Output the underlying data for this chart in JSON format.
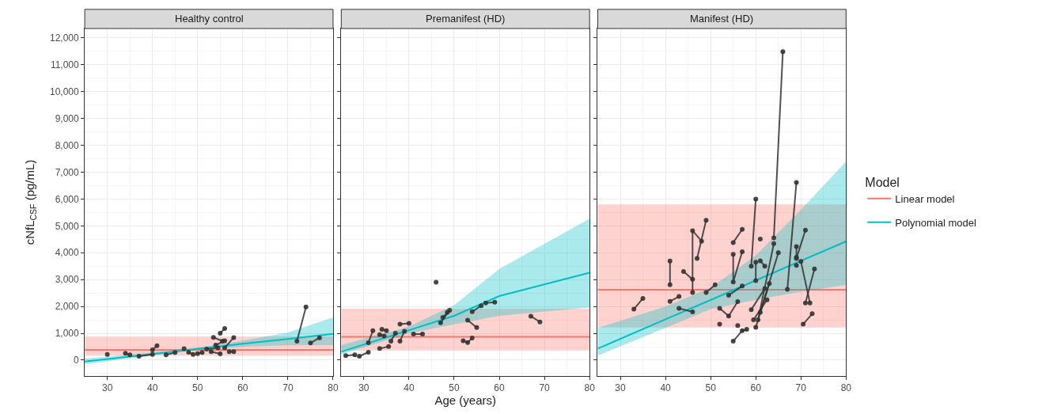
{
  "chart_data": [
    {
      "type": "line",
      "title": "Healthy control",
      "ylabel": "cNfL$_{CSF}$ (pg/mL)",
      "xlim": [
        25,
        80
      ],
      "xticks": [
        30,
        40,
        50,
        60,
        70,
        80
      ],
      "ylim": [
        -590,
        12350
      ],
      "yticks": [
        0,
        {
          "value": 1000,
          "label": "1,000"
        },
        {
          "value": 2000,
          "label": "2,000"
        },
        {
          "value": 3000,
          "label": "3,000"
        },
        {
          "value": 4000,
          "label": "4,000"
        },
        {
          "value": 5000,
          "label": "5,000"
        },
        {
          "value": 6000,
          "label": "6,000"
        },
        {
          "value": 7000,
          "label": "7,000"
        },
        {
          "value": 8000,
          "label": "8,000"
        },
        {
          "value": 9000,
          "label": "9,000"
        },
        {
          "value": 10000,
          "label": "10,000"
        },
        {
          "value": 11000,
          "label": "11,000"
        },
        {
          "value": 12000,
          "label": "12,000"
        }
      ],
      "grid": true,
      "series": [
        {
          "color": "#f8766d",
          "x": [
            25,
            80
          ],
          "values": [
            380,
            380
          ],
          "lower": [
            167,
            167
          ],
          "upper": [
            882,
            882
          ]
        },
        {
          "color": "#00bfc4",
          "x": [
            25,
            40,
            50,
            60,
            70,
            80
          ],
          "values": [
            -50,
            230,
            420,
            610,
            790,
            980
          ],
          "lower": [
            -150,
            180,
            380,
            500,
            550,
            560
          ],
          "upper": [
            60,
            290,
            470,
            720,
            1030,
            1590
          ]
        },
        {
          "color": "#333333",
          "marker": "circle",
          "x": [
            30,
            null,
            34,
            35,
            null,
            37,
            40,
            null,
            40,
            41,
            null,
            43,
            45,
            null,
            47,
            null,
            48,
            49,
            null,
            50,
            51,
            null,
            52,
            54.5,
            null,
            53.5,
            55.5,
            null,
            55,
            56,
            null,
            54,
            56,
            null,
            56,
            58,
            null,
            53,
            55,
            null,
            57,
            58,
            null,
            72,
            74,
            null,
            75,
            77
          ],
          "values": [
            215,
            null,
            255,
            196,
            null,
            147,
            216,
            null,
            380,
            540,
            null,
            196,
            284,
            null,
            430,
            null,
            294,
            216,
            null,
            245,
            284,
            null,
            410,
            460,
            null,
            850,
            706,
            null,
            1000,
            1176,
            null,
            560,
            725,
            null,
            460,
            843,
            null,
            314,
            235,
            null,
            314,
            314,
            null,
            706,
            1980,
            null,
            637,
            833
          ]
        }
      ]
    },
    {
      "type": "line",
      "title": "Premanifest (HD)",
      "xlabel": "Age (years)",
      "tick_labels": "x",
      "xlim": [
        25,
        80
      ],
      "xticks": [
        30,
        40,
        50,
        60,
        70,
        80
      ],
      "ylim": [
        -590,
        12350
      ],
      "yticks": [
        {
          "value": 0,
          "label": null
        },
        {
          "value": 1000,
          "label": null
        },
        {
          "value": 2000,
          "label": null
        },
        {
          "value": 3000,
          "label": null
        },
        {
          "value": 4000,
          "label": null
        },
        {
          "value": 5000,
          "label": null
        },
        {
          "value": 6000,
          "label": null
        },
        {
          "value": 7000,
          "label": null
        },
        {
          "value": 8000,
          "label": null
        },
        {
          "value": 9000,
          "label": null
        },
        {
          "value": 10000,
          "label": null
        },
        {
          "value": 11000,
          "label": null
        },
        {
          "value": 12000,
          "label": null
        }
      ],
      "grid": true,
      "series": [
        {
          "color": "#f8766d",
          "x": [
            25,
            80
          ],
          "values": [
            870,
            870
          ],
          "lower": [
            363,
            363
          ],
          "upper": [
            1912,
            1912
          ]
        },
        {
          "color": "#00bfc4",
          "x": [
            25,
            40,
            50,
            60,
            70,
            80
          ],
          "values": [
            314,
            1116,
            1650,
            2385,
            2820,
            3255
          ],
          "lower": [
            216,
            1000,
            1330,
            1650,
            1810,
            1961
          ],
          "upper": [
            560,
            1250,
            2050,
            3400,
            4330,
            5265
          ]
        },
        {
          "color": "#333333",
          "marker": "circle",
          "x": [
            26,
            28,
            null,
            29,
            31,
            null,
            31,
            32,
            null,
            34,
            35,
            null,
            33.5,
            34.5,
            null,
            36,
            37,
            null,
            38,
            39,
            null,
            33.5,
            35.5,
            null,
            38,
            40,
            null,
            41,
            43,
            null,
            46,
            null,
            47,
            49,
            null,
            47.5,
            48.5,
            null,
            53,
            55,
            null,
            52,
            53,
            54,
            null,
            54,
            56,
            null,
            57,
            59,
            null,
            67,
            69
          ],
          "values": [
            167,
            196,
            null,
            147,
            294,
            null,
            647,
            1098,
            null,
            1147,
            1098,
            null,
            951,
            902,
            null,
            706,
            1000,
            null,
            706,
            1078,
            null,
            431,
            510,
            null,
            1343,
            1373,
            null,
            971,
            971,
            null,
            2902,
            null,
            1392,
            1853,
            null,
            1588,
            1784,
            null,
            1490,
            1216,
            null,
            725,
            657,
            824,
            null,
            1804,
            2029,
            null,
            2127,
            2157,
            null,
            1637,
            1422
          ]
        }
      ]
    },
    {
      "type": "line",
      "title": "Manifest (HD)",
      "tick_labels": "x",
      "legend": "right",
      "legend_title": "Model",
      "xlim": [
        25,
        80
      ],
      "xticks": [
        30,
        40,
        50,
        60,
        70,
        80
      ],
      "ylim": [
        -590,
        12350
      ],
      "yticks": [
        {
          "value": 0,
          "label": null
        },
        {
          "value": 1000,
          "label": null
        },
        {
          "value": 2000,
          "label": null
        },
        {
          "value": 3000,
          "label": null
        },
        {
          "value": 4000,
          "label": null
        },
        {
          "value": 5000,
          "label": null
        },
        {
          "value": 6000,
          "label": null
        },
        {
          "value": 7000,
          "label": null
        },
        {
          "value": 8000,
          "label": null
        },
        {
          "value": 9000,
          "label": null
        },
        {
          "value": 10000,
          "label": null
        },
        {
          "value": 11000,
          "label": null
        },
        {
          "value": 12000,
          "label": null
        }
      ],
      "grid": true,
      "series": [
        {
          "name": "Linear model",
          "color": "#f8766d",
          "x": [
            25,
            80
          ],
          "values": [
            2620,
            2620
          ],
          "lower": [
            1215,
            1215
          ],
          "upper": [
            5800,
            5800
          ]
        },
        {
          "name": "Polynomial model",
          "color": "#00bfc4",
          "x": [
            25,
            40,
            50,
            60,
            70,
            80
          ],
          "values": [
            430,
            1520,
            2240,
            2970,
            3700,
            4420
          ],
          "lower": [
            170,
            1200,
            1900,
            2250,
            2550,
            2800
          ],
          "upper": [
            1200,
            2000,
            2700,
            3900,
            5600,
            7400
          ]
        },
        {
          "color": "#333333",
          "marker": "circle",
          "x": [
            33,
            35,
            null,
            41,
            41,
            null,
            41,
            43,
            null,
            43,
            46,
            null,
            44,
            46,
            null,
            46,
            46,
            48,
            null,
            47,
            49,
            null,
            49,
            51,
            null,
            52,
            54,
            56,
            null,
            52,
            null,
            54,
            57,
            null,
            55,
            57,
            null,
            55,
            55,
            57,
            null,
            55,
            57,
            58,
            null,
            56,
            null,
            60,
            59,
            null,
            61,
            null,
            59,
            62,
            null,
            59.5,
            62.5,
            null,
            60,
            63,
            null,
            60.5,
            64,
            null,
            61,
            65,
            null,
            64,
            66,
            null,
            60,
            60,
            null,
            61,
            62,
            null,
            67,
            69,
            null,
            69,
            71,
            null,
            70,
            72,
            null,
            71,
            73,
            null,
            70.5,
            72.5,
            null,
            69,
            null,
            69,
            69
          ],
          "values": [
            1900,
            2300,
            null,
            3690,
            2810,
            null,
            2190,
            2370,
            null,
            1930,
            1800,
            null,
            3300,
            3010,
            null,
            2520,
            4820,
            4430,
            null,
            3790,
            5210,
            null,
            2520,
            2810,
            null,
            1930,
            1640,
            2180,
            null,
            1340,
            null,
            2420,
            2760,
            null,
            4380,
            4870,
            null,
            3940,
            2910,
            4040,
            null,
            705,
            1100,
            1150,
            null,
            1290,
            null,
            6000,
            3500,
            null,
            4510,
            null,
            1880,
            2670,
            null,
            1500,
            2250,
            null,
            1220,
            2850,
            null,
            1500,
            4340,
            null,
            1780,
            4000,
            null,
            4550,
            11490,
            null,
            3650,
            2960,
            null,
            3700,
            3500,
            null,
            2640,
            6620,
            null,
            3790,
            4840,
            null,
            3680,
            2130,
            null,
            2130,
            3400,
            null,
            1340,
            1730,
            null,
            3530,
            null,
            4230,
            3830
          ]
        }
      ]
    }
  ]
}
